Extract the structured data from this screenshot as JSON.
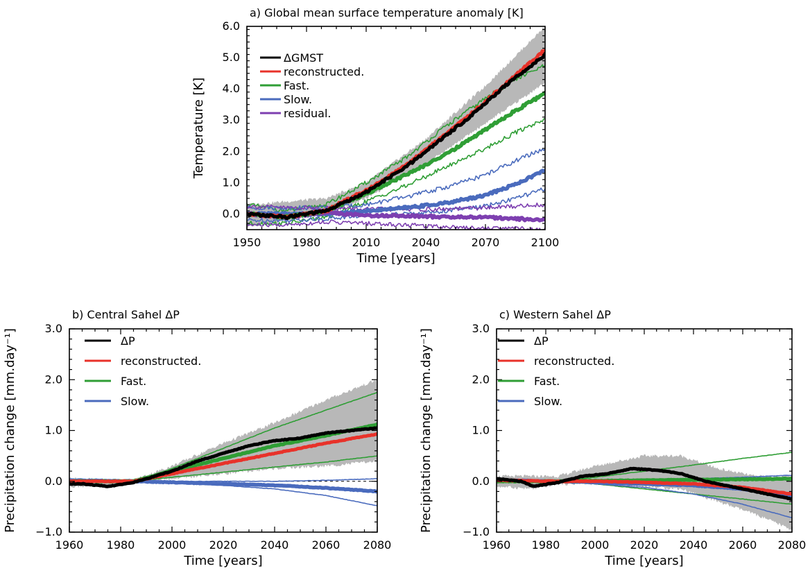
{
  "chart_data": [
    {
      "type": "line",
      "title": "a) Global mean surface temperature anomaly [K]",
      "xlabel": "Time [years]",
      "ylabel": "Temperature [K]",
      "xlim": [
        1950,
        2100
      ],
      "ylim": [
        -0.5,
        6.0
      ],
      "xticks": [
        1950,
        1980,
        2010,
        2040,
        2070,
        2100
      ],
      "yticks": [
        0.0,
        1.0,
        2.0,
        3.0,
        4.0,
        5.0,
        6.0
      ],
      "ytick_labels": [
        "0.0",
        "1.0",
        "2.0",
        "3.0",
        "4.0",
        "5.0",
        "6.0"
      ],
      "legend_position": "top-left",
      "legend": [
        "ΔGMST",
        "reconstructed.",
        "Fast.",
        "Slow.",
        "residual."
      ],
      "colors": {
        "gmst": "#000000",
        "reconstructed": "#e8322a",
        "fast": "#2f9e35",
        "slow": "#4a6bbd",
        "residual": "#7d3fb0",
        "spread": "#b8b8b8"
      },
      "spread_band": {
        "x": [
          1950,
          1990,
          2010,
          2040,
          2070,
          2100
        ],
        "lower": [
          -0.4,
          0.0,
          0.5,
          1.6,
          2.9,
          4.2
        ],
        "upper": [
          0.3,
          0.5,
          1.0,
          2.4,
          4.1,
          6.0
        ]
      },
      "series": [
        {
          "name": "ΔGMST",
          "x": [
            1950,
            1970,
            1990,
            2000,
            2010,
            2020,
            2030,
            2040,
            2050,
            2060,
            2070,
            2080,
            2090,
            2100
          ],
          "values": [
            0.0,
            -0.1,
            0.1,
            0.4,
            0.7,
            1.1,
            1.5,
            2.0,
            2.5,
            3.0,
            3.55,
            4.1,
            4.6,
            5.1
          ]
        },
        {
          "name": "reconstructed.",
          "x": [
            1950,
            1970,
            1990,
            2000,
            2010,
            2020,
            2030,
            2040,
            2050,
            2060,
            2070,
            2080,
            2090,
            2100
          ],
          "values": [
            0.0,
            -0.1,
            0.1,
            0.45,
            0.75,
            1.15,
            1.55,
            2.05,
            2.55,
            3.05,
            3.6,
            4.15,
            4.7,
            5.25
          ]
        },
        {
          "name": "Fast.",
          "x": [
            1950,
            1970,
            1990,
            2010,
            2030,
            2050,
            2070,
            2085,
            2100
          ],
          "values": [
            0.0,
            -0.1,
            0.1,
            0.65,
            1.25,
            1.9,
            2.7,
            3.3,
            3.85
          ]
        },
        {
          "name": "Slow.",
          "x": [
            1950,
            1970,
            1990,
            2010,
            2030,
            2050,
            2070,
            2085,
            2100
          ],
          "values": [
            0.0,
            0.0,
            0.0,
            0.1,
            0.2,
            0.35,
            0.6,
            0.95,
            1.4
          ]
        },
        {
          "name": "residual.",
          "x": [
            1950,
            1970,
            1990,
            2010,
            2030,
            2050,
            2070,
            2085,
            2100
          ],
          "values": [
            0.0,
            -0.1,
            0.05,
            -0.05,
            -0.05,
            -0.1,
            -0.1,
            -0.15,
            -0.2
          ]
        }
      ],
      "bounds": [
        {
          "series": "Fast.",
          "x": [
            1950,
            1970,
            1990,
            2010,
            2030,
            2050,
            2070,
            2085,
            2100
          ],
          "values": [
            0.3,
            0.1,
            0.3,
            1.0,
            1.8,
            2.8,
            3.7,
            4.3,
            4.75
          ]
        },
        {
          "series": "Fast.",
          "x": [
            1950,
            1970,
            1990,
            2010,
            2030,
            2050,
            2070,
            2085,
            2100
          ],
          "values": [
            -0.3,
            -0.3,
            -0.1,
            0.4,
            0.9,
            1.5,
            2.1,
            2.6,
            3.05
          ]
        },
        {
          "series": "Slow.",
          "x": [
            1950,
            1970,
            1990,
            2010,
            2030,
            2050,
            2070,
            2085,
            2100
          ],
          "values": [
            0.2,
            0.2,
            0.2,
            0.3,
            0.55,
            0.85,
            1.25,
            1.7,
            2.1
          ]
        },
        {
          "series": "Slow.",
          "x": [
            1950,
            1970,
            1990,
            2010,
            2030,
            2050,
            2070,
            2085,
            2100
          ],
          "values": [
            -0.2,
            -0.2,
            -0.15,
            -0.05,
            0.0,
            0.1,
            0.25,
            0.5,
            0.8
          ]
        },
        {
          "series": "residual.",
          "x": [
            1950,
            1970,
            1990,
            2010,
            2030,
            2050,
            2070,
            2085,
            2100
          ],
          "values": [
            0.25,
            0.2,
            0.2,
            0.15,
            0.15,
            0.15,
            0.2,
            0.25,
            0.3
          ]
        },
        {
          "series": "residual.",
          "x": [
            1950,
            1970,
            1990,
            2010,
            2030,
            2050,
            2070,
            2085,
            2100
          ],
          "values": [
            -0.35,
            -0.35,
            -0.25,
            -0.3,
            -0.35,
            -0.4,
            -0.45,
            -0.45,
            -0.5
          ]
        }
      ]
    },
    {
      "type": "line",
      "title": "b) Central Sahel ΔP",
      "xlabel": "Time [years]",
      "ylabel": "Precipitation change [mm.day⁻¹]",
      "xlim": [
        1960,
        2080
      ],
      "ylim": [
        -1.0,
        3.0
      ],
      "xticks": [
        1960,
        1980,
        2000,
        2020,
        2040,
        2060,
        2080
      ],
      "yticks": [
        -1.0,
        0.0,
        1.0,
        2.0,
        3.0
      ],
      "ytick_labels": [
        "−1.0",
        "0.0",
        "1.0",
        "2.0",
        "3.0"
      ],
      "legend_position": "top-left",
      "legend": [
        "ΔP",
        "reconstructed.",
        "Fast.",
        "Slow."
      ],
      "colors": {
        "dp": "#000000",
        "reconstructed": "#e8322a",
        "fast": "#2f9e35",
        "slow": "#4a6bbd",
        "spread": "#b8b8b8"
      },
      "spread_band": {
        "x": [
          1960,
          1975,
          1985,
          2000,
          2020,
          2040,
          2060,
          2080
        ],
        "lower": [
          -0.1,
          -0.08,
          -0.03,
          0.05,
          0.15,
          0.25,
          0.3,
          0.4
        ],
        "upper": [
          0.06,
          0.03,
          0.03,
          0.3,
          0.75,
          1.15,
          1.6,
          2.0
        ]
      },
      "series": [
        {
          "name": "ΔP",
          "x": [
            1960,
            1965,
            1975,
            1985,
            1990,
            2000,
            2010,
            2020,
            2030,
            2040,
            2050,
            2060,
            2070,
            2080
          ],
          "values": [
            -0.05,
            -0.05,
            -0.1,
            -0.02,
            0.05,
            0.2,
            0.4,
            0.55,
            0.7,
            0.8,
            0.85,
            0.95,
            1.0,
            1.05
          ]
        },
        {
          "name": "reconstructed.",
          "x": [
            1960,
            1985,
            2000,
            2020,
            2040,
            2060,
            2080
          ],
          "values": [
            0.0,
            0.0,
            0.15,
            0.35,
            0.55,
            0.75,
            0.93
          ]
        },
        {
          "name": "Fast.",
          "x": [
            1960,
            1985,
            2000,
            2020,
            2040,
            2060,
            2080
          ],
          "values": [
            0.0,
            0.0,
            0.2,
            0.45,
            0.7,
            0.9,
            1.12
          ]
        },
        {
          "name": "Slow.",
          "x": [
            1960,
            1985,
            2000,
            2020,
            2040,
            2060,
            2080
          ],
          "values": [
            0.02,
            0.0,
            -0.02,
            -0.05,
            -0.08,
            -0.13,
            -0.2
          ]
        }
      ],
      "bounds": [
        {
          "series": "Fast.",
          "x": [
            1960,
            1985,
            2000,
            2020,
            2040,
            2060,
            2080
          ],
          "values": [
            0.0,
            0.0,
            0.25,
            0.65,
            1.05,
            1.4,
            1.75
          ]
        },
        {
          "series": "Fast.",
          "x": [
            1960,
            1985,
            2000,
            2020,
            2040,
            2060,
            2080
          ],
          "values": [
            0.0,
            0.0,
            0.08,
            0.18,
            0.28,
            0.38,
            0.5
          ]
        },
        {
          "series": "Slow.",
          "x": [
            1960,
            1985,
            2000,
            2020,
            2040,
            2060,
            2080
          ],
          "values": [
            0.02,
            0.0,
            0.0,
            0.0,
            0.0,
            0.02,
            0.05
          ]
        },
        {
          "series": "Slow.",
          "x": [
            1960,
            1985,
            2000,
            2020,
            2040,
            2060,
            2080
          ],
          "values": [
            0.02,
            0.0,
            -0.03,
            -0.08,
            -0.15,
            -0.28,
            -0.48
          ]
        }
      ],
      "dashed_zero_line": {
        "from_x": 2040,
        "to_x": 2080
      }
    },
    {
      "type": "line",
      "title": "c) Western Sahel ΔP",
      "xlabel": "Time [years]",
      "ylabel": "Precipitation change [mm.day⁻¹]",
      "xlim": [
        1960,
        2080
      ],
      "ylim": [
        -1.0,
        3.0
      ],
      "xticks": [
        1960,
        1980,
        2000,
        2020,
        2040,
        2060,
        2080
      ],
      "yticks": [
        -1.0,
        0.0,
        1.0,
        2.0,
        3.0
      ],
      "ytick_labels": [
        "−1.0",
        "0.0",
        "1.0",
        "2.0",
        "3.0"
      ],
      "legend_position": "top-left",
      "legend": [
        "ΔP",
        "reconstructed.",
        "Fast.",
        "Slow."
      ],
      "colors": {
        "dp": "#000000",
        "reconstructed": "#e8322a",
        "fast": "#2f9e35",
        "slow": "#4a6bbd",
        "spread": "#b8b8b8"
      },
      "spread_band": {
        "x": [
          1960,
          1975,
          1985,
          2000,
          2020,
          2035,
          2050,
          2065,
          2080
        ],
        "lower": [
          -0.1,
          -0.15,
          -0.05,
          -0.05,
          -0.1,
          -0.15,
          -0.4,
          -0.65,
          -0.95
        ],
        "upper": [
          0.1,
          0.1,
          0.1,
          0.3,
          0.5,
          0.5,
          0.25,
          0.1,
          0.1
        ]
      },
      "series": [
        {
          "name": "ΔP",
          "x": [
            1960,
            1970,
            1975,
            1985,
            1995,
            2005,
            2015,
            2025,
            2035,
            2045,
            2055,
            2065,
            2080
          ],
          "values": [
            0.05,
            0.0,
            -0.1,
            -0.02,
            0.1,
            0.15,
            0.25,
            0.22,
            0.15,
            0.0,
            -0.1,
            -0.2,
            -0.35
          ]
        },
        {
          "name": "reconstructed.",
          "x": [
            1960,
            1985,
            2000,
            2020,
            2040,
            2060,
            2080
          ],
          "values": [
            0.02,
            0.0,
            0.0,
            -0.02,
            -0.05,
            -0.12,
            -0.25
          ]
        },
        {
          "name": "Fast.",
          "x": [
            1960,
            1985,
            2000,
            2020,
            2040,
            2060,
            2080
          ],
          "values": [
            0.0,
            0.0,
            0.01,
            0.02,
            0.03,
            0.04,
            0.05
          ]
        },
        {
          "name": "Slow.",
          "x": [
            1960,
            1985,
            2000,
            2020,
            2040,
            2060,
            2080
          ],
          "values": [
            0.02,
            0.0,
            -0.02,
            -0.05,
            -0.08,
            -0.15,
            -0.3
          ]
        }
      ],
      "bounds": [
        {
          "series": "Fast.",
          "x": [
            1960,
            1985,
            2000,
            2020,
            2040,
            2060,
            2080
          ],
          "values": [
            0.0,
            0.0,
            0.08,
            0.2,
            0.32,
            0.45,
            0.57
          ]
        },
        {
          "series": "Fast.",
          "x": [
            1960,
            1985,
            2000,
            2020,
            2040,
            2060,
            2080
          ],
          "values": [
            0.0,
            0.0,
            -0.05,
            -0.15,
            -0.25,
            -0.35,
            -0.45
          ]
        },
        {
          "series": "Slow.",
          "x": [
            1960,
            1985,
            2000,
            2020,
            2040,
            2060,
            2080
          ],
          "values": [
            0.02,
            0.0,
            0.0,
            0.02,
            0.05,
            0.08,
            0.12
          ]
        },
        {
          "series": "Slow.",
          "x": [
            1960,
            1985,
            2000,
            2020,
            2040,
            2060,
            2080
          ],
          "values": [
            0.02,
            0.0,
            -0.05,
            -0.12,
            -0.25,
            -0.45,
            -0.72
          ]
        }
      ]
    }
  ]
}
